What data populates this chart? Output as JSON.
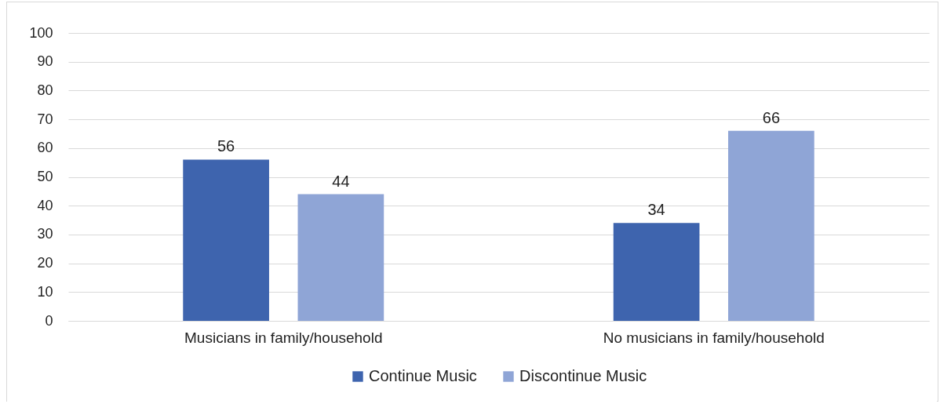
{
  "chart_data": {
    "type": "bar",
    "categories": [
      "Musicians in family/household",
      "No musicians in family/household"
    ],
    "series": [
      {
        "name": "Continue Music",
        "color": "#3e64ae",
        "values": [
          56,
          34
        ]
      },
      {
        "name": "Discontinue Music",
        "color": "#8fa5d6",
        "values": [
          44,
          66
        ]
      }
    ],
    "ylim": [
      0,
      100
    ],
    "yticks": [
      0,
      10,
      20,
      30,
      40,
      50,
      60,
      70,
      80,
      90,
      100
    ],
    "grid": "y",
    "legend": "bottom",
    "data_labels": true
  }
}
